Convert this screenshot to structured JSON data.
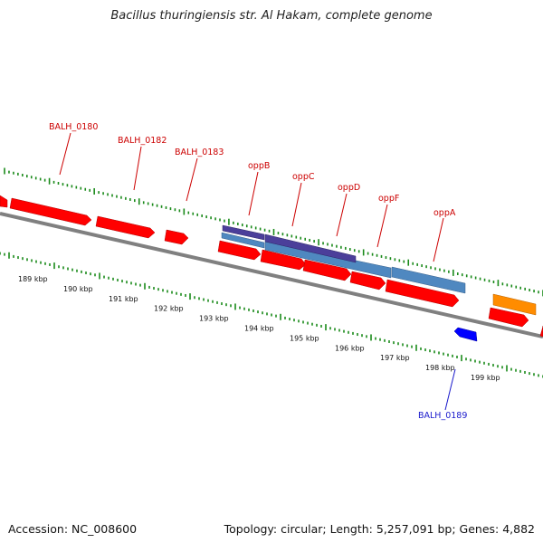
{
  "title": "Bacillus thuringiensis str. Al Hakam, complete genome",
  "accession": "Accession: NC_008600",
  "topology": "Topology: circular; Length: 5,257,091 bp; Genes: 4,882",
  "colors": {
    "cds": "#ff0000",
    "blue_feature": "#0000ff",
    "orange_feature": "#ff8c00",
    "steel_feature": "#4f88c0",
    "purple_feature": "#4b3f9a",
    "backbone": "#808080",
    "tick": "#1a8a1a",
    "label_red": "#cc0000",
    "label_blue": "#1a1acc"
  },
  "gene_labels": [
    {
      "text": "BALH_0180",
      "color": "red"
    },
    {
      "text": "BALH_0182",
      "color": "red"
    },
    {
      "text": "BALH_0183",
      "color": "red"
    },
    {
      "text": "oppB",
      "color": "red"
    },
    {
      "text": "oppC",
      "color": "red"
    },
    {
      "text": "oppD",
      "color": "red"
    },
    {
      "text": "oppF",
      "color": "red"
    },
    {
      "text": "oppA",
      "color": "red"
    },
    {
      "text": "BALH_0189",
      "color": "blue"
    }
  ],
  "tick_labels": [
    "189 kbp",
    "190 kbp",
    "191 kbp",
    "192 kbp",
    "193 kbp",
    "194 kbp",
    "195 kbp",
    "196 kbp",
    "197 kbp",
    "198 kbp",
    "199 kbp"
  ]
}
